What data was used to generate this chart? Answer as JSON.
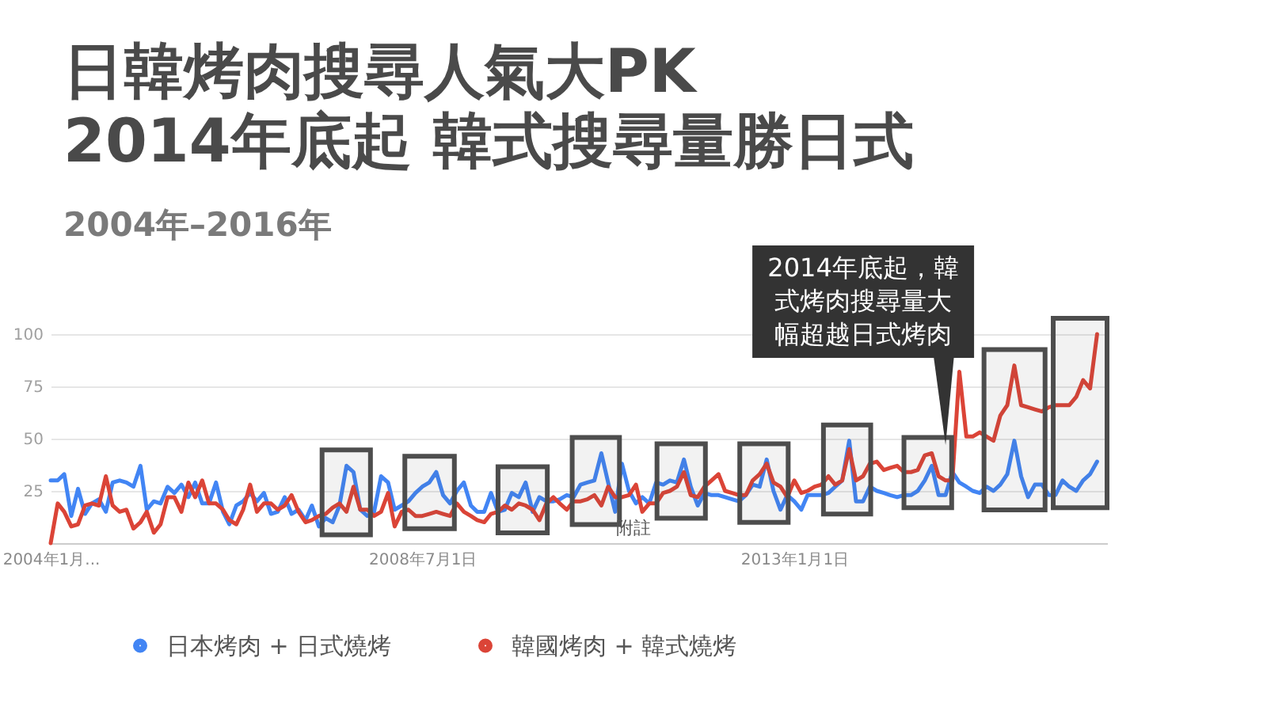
{
  "chart_data": {
    "type": "line",
    "title": "日韓烤肉搜尋人氣大PK\n2014年底起  韓式搜尋量勝日式",
    "subtitle": "2004年–2016年",
    "x": [
      "2004-01",
      "2004-02",
      "2004-03",
      "2004-04",
      "2004-05",
      "2004-06",
      "2004-07",
      "2004-08",
      "2004-09",
      "2004-10",
      "2004-11",
      "2004-12",
      "2005-01",
      "2005-02",
      "2005-03",
      "2005-04",
      "2005-05",
      "2005-06",
      "2005-07",
      "2005-08",
      "2005-09",
      "2005-10",
      "2005-11",
      "2005-12",
      "2006-01",
      "2006-02",
      "2006-03",
      "2006-04",
      "2006-05",
      "2006-06",
      "2006-07",
      "2006-08",
      "2006-09",
      "2006-10",
      "2006-11",
      "2006-12",
      "2007-01",
      "2007-02",
      "2007-03",
      "2007-04",
      "2007-05",
      "2007-06",
      "2007-07",
      "2007-08",
      "2007-09",
      "2007-10",
      "2007-11",
      "2007-12",
      "2008-01",
      "2008-02",
      "2008-03",
      "2008-04",
      "2008-05",
      "2008-06",
      "2008-07",
      "2008-08",
      "2008-09",
      "2008-10",
      "2008-11",
      "2008-12",
      "2009-01",
      "2009-02",
      "2009-03",
      "2009-04",
      "2009-05",
      "2009-06",
      "2009-07",
      "2009-08",
      "2009-09",
      "2009-10",
      "2009-11",
      "2009-12",
      "2010-01",
      "2010-02",
      "2010-03",
      "2010-04",
      "2010-05",
      "2010-06",
      "2010-07",
      "2010-08",
      "2010-09",
      "2010-10",
      "2010-11",
      "2010-12",
      "2011-01",
      "2011-02",
      "2011-03",
      "2011-04",
      "2011-05",
      "2011-06",
      "2011-07",
      "2011-08",
      "2011-09",
      "2011-10",
      "2011-11",
      "2011-12",
      "2012-01",
      "2012-02",
      "2012-03",
      "2012-04",
      "2012-05",
      "2012-06",
      "2012-07",
      "2012-08",
      "2012-09",
      "2012-10",
      "2012-11",
      "2012-12",
      "2013-01",
      "2013-02",
      "2013-03",
      "2013-04",
      "2013-05",
      "2013-06",
      "2013-07",
      "2013-08",
      "2013-09",
      "2013-10",
      "2013-11",
      "2013-12",
      "2014-01",
      "2014-02",
      "2014-03",
      "2014-04",
      "2014-05",
      "2014-06",
      "2014-07",
      "2014-08",
      "2014-09",
      "2014-10",
      "2014-11",
      "2014-12",
      "2015-01",
      "2015-02",
      "2015-03",
      "2015-04",
      "2015-05",
      "2015-06",
      "2015-07",
      "2015-08",
      "2015-09",
      "2015-10",
      "2015-11",
      "2015-12",
      "2016-01",
      "2016-02",
      "2016-03",
      "2016-04",
      "2016-05",
      "2016-06",
      "2016-07",
      "2016-08",
      "2016-09"
    ],
    "series": [
      {
        "name": "日本烤肉 + 日式燒烤",
        "color": "#4285f4",
        "values": [
          30,
          30,
          33,
          13,
          26,
          14,
          19,
          21,
          15,
          29,
          30,
          29,
          27,
          37,
          16,
          20,
          19,
          27,
          24,
          28,
          22,
          29,
          19,
          19,
          29,
          15,
          9,
          18,
          20,
          24,
          20,
          24,
          14,
          15,
          22,
          14,
          16,
          11,
          18,
          8,
          12,
          10,
          18,
          37,
          34,
          16,
          13,
          15,
          32,
          29,
          16,
          18,
          20,
          24,
          27,
          29,
          34,
          23,
          19,
          25,
          29,
          18,
          15,
          15,
          24,
          15,
          16,
          24,
          22,
          29,
          15,
          22,
          20,
          20,
          21,
          23,
          22,
          28,
          29,
          30,
          43,
          29,
          15,
          38,
          25,
          19,
          22,
          19,
          29,
          28,
          30,
          29,
          40,
          27,
          18,
          24,
          23,
          23,
          22,
          21,
          20,
          23,
          28,
          27,
          40,
          25,
          16,
          23,
          20,
          16,
          23,
          23,
          23,
          24,
          27,
          30,
          49,
          20,
          20,
          27,
          25,
          24,
          23,
          22,
          23,
          23,
          25,
          30,
          37,
          23,
          23,
          34,
          29,
          27,
          25,
          24,
          27,
          25,
          28,
          33,
          49,
          32,
          22,
          28,
          28,
          23,
          23,
          30,
          27,
          25,
          30,
          33,
          39
        ]
      },
      {
        "name": "韓國烤肉 + 韓式燒烤",
        "color": "#db4437",
        "values": [
          0,
          19,
          15,
          8,
          9,
          18,
          19,
          18,
          32,
          18,
          15,
          16,
          7,
          10,
          15,
          5,
          9,
          22,
          22,
          15,
          29,
          22,
          30,
          19,
          19,
          16,
          11,
          9,
          16,
          28,
          15,
          19,
          19,
          16,
          18,
          23,
          15,
          10,
          11,
          13,
          14,
          17,
          19,
          15,
          27,
          16,
          16,
          13,
          15,
          24,
          8,
          15,
          16,
          13,
          13,
          14,
          15,
          14,
          13,
          19,
          15,
          13,
          11,
          10,
          14,
          15,
          18,
          16,
          19,
          18,
          16,
          11,
          19,
          22,
          19,
          16,
          20,
          20,
          21,
          23,
          18,
          27,
          22,
          22,
          23,
          28,
          15,
          19,
          19,
          24,
          25,
          27,
          34,
          23,
          22,
          27,
          30,
          33,
          25,
          24,
          23,
          23,
          30,
          33,
          38,
          29,
          27,
          22,
          30,
          24,
          25,
          27,
          28,
          32,
          28,
          30,
          45,
          30,
          32,
          38,
          39,
          35,
          36,
          37,
          34,
          34,
          35,
          42,
          43,
          32,
          30,
          30,
          82,
          51,
          51,
          53,
          51,
          49,
          61,
          66,
          85,
          66,
          65,
          64,
          63,
          65,
          66,
          66,
          66,
          70,
          78,
          74,
          100
        ]
      }
    ],
    "xlim": [
      "2004-01-01",
      "2016-10-15"
    ],
    "xticks": [
      {
        "value": "2004-01-01",
        "label": "2004年1月..."
      },
      {
        "value": "2008-07-01",
        "label": "2008年7月1日"
      },
      {
        "value": "2013-01-01",
        "label": "2013年1月1日"
      }
    ],
    "ylim": [
      0,
      100
    ],
    "yticks": [
      25,
      50,
      75,
      100
    ],
    "grid": "y",
    "legend": "bottom",
    "marker": "none",
    "line_style": "solid",
    "annotations": [
      {
        "text": "2014年底起，韓式烤肉搜尋量大幅超越日式烤肉",
        "x": "2014-11",
        "y": 47
      },
      "附註"
    ],
    "bands": [
      {
        "axis": "x",
        "from": "2007-04-15",
        "to": "2007-11-15",
        "color": "#4d4d4d"
      },
      {
        "axis": "x",
        "from": "2008-04-15",
        "to": "2008-11-20",
        "color": "#4d4d4d"
      },
      {
        "axis": "x",
        "from": "2009-06-01",
        "to": "2010-01-05",
        "color": "#4d4d4d"
      },
      {
        "axis": "x",
        "from": "2010-04-25",
        "to": "2010-11-20",
        "color": "#4d4d4d"
      },
      {
        "axis": "x",
        "from": "2011-05-05",
        "to": "2011-12-05",
        "color": "#4d4d4d"
      },
      {
        "axis": "x",
        "from": "2012-05-05",
        "to": "2012-12-05",
        "color": "#4d4d4d"
      },
      {
        "axis": "x",
        "from": "2013-05-10",
        "to": "2013-12-05",
        "color": "#4d4d4d"
      },
      {
        "axis": "x",
        "from": "2014-05-01",
        "to": "2014-11-28",
        "color": "#4d4d4d"
      },
      {
        "axis": "x",
        "from": "2015-04-20",
        "to": "2016-01-15",
        "color": "#4d4d4d"
      },
      {
        "axis": "x",
        "from": "2016-02-20",
        "to": "2016-10-15",
        "color": "#4d4d4d"
      }
    ]
  }
}
